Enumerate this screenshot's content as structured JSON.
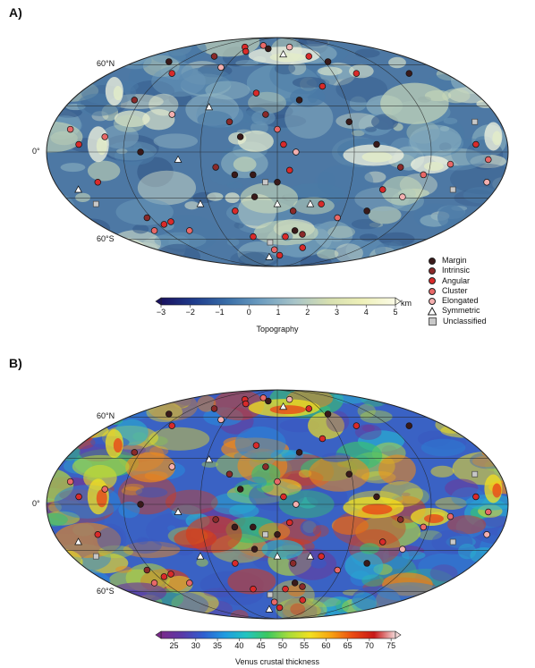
{
  "panels": [
    {
      "label": "A)",
      "lat_labels": {
        "north": "60°N",
        "equator": "0°",
        "south": "60°S"
      },
      "colorbar": {
        "title": "Topography",
        "unit": "km",
        "ticks": [
          "−3",
          "−2",
          "−1",
          "0",
          "1",
          "2",
          "3",
          "4",
          "5"
        ],
        "range": [
          -3,
          5
        ],
        "palette": [
          "#1a1260",
          "#1f3c8c",
          "#3a6fa8",
          "#6e9ec0",
          "#a8c4c8",
          "#d6dfb0",
          "#eef0b8",
          "#fbfbe6"
        ]
      }
    },
    {
      "label": "B)",
      "lat_labels": {
        "north": "60°N",
        "equator": "0°",
        "south": "60°S"
      },
      "colorbar": {
        "title": "Venus crustal thickness",
        "unit": "",
        "ticks": [
          "25",
          "30",
          "35",
          "40",
          "45",
          "50",
          "55",
          "60",
          "65",
          "70",
          "75"
        ],
        "range": [
          22,
          76
        ],
        "palette": [
          "#7a2a8a",
          "#5a3aa8",
          "#2f5fd0",
          "#1f9be0",
          "#22c4c0",
          "#3cc860",
          "#a8dc3a",
          "#f2e020",
          "#f6a012",
          "#ea4a12",
          "#c81818",
          "#f2d8d8"
        ]
      }
    }
  ],
  "legend": [
    {
      "label": "Margin",
      "symbol": "circle",
      "color": "#3a1a1a"
    },
    {
      "label": "Intrinsic",
      "symbol": "circle",
      "color": "#8a2a2a"
    },
    {
      "label": "Angular",
      "symbol": "circle",
      "color": "#d92a2a"
    },
    {
      "label": "Cluster",
      "symbol": "circle",
      "color": "#e86868"
    },
    {
      "label": "Elongated",
      "symbol": "circle",
      "color": "#f4b0b0"
    },
    {
      "label": "Symmetric",
      "symbol": "triangle",
      "color": "#ffffff"
    },
    {
      "label": "Unclassified",
      "symbol": "square",
      "color": "#c8c8c8"
    }
  ],
  "points": [
    {
      "lon": -150,
      "lat": 65,
      "t": "Margin"
    },
    {
      "lon": -120,
      "lat": 55,
      "t": "Angular"
    },
    {
      "lon": -100,
      "lat": 70,
      "t": "Intrinsic"
    },
    {
      "lon": -80,
      "lat": 80,
      "t": "Angular"
    },
    {
      "lon": -60,
      "lat": 75,
      "t": "Angular"
    },
    {
      "lon": -40,
      "lat": 82,
      "t": "Cluster"
    },
    {
      "lon": -20,
      "lat": 78,
      "t": "Margin"
    },
    {
      "lon": 10,
      "lat": 72,
      "t": "Symmetric"
    },
    {
      "lon": 30,
      "lat": 80,
      "t": "Elongated"
    },
    {
      "lon": 50,
      "lat": 70,
      "t": "Angular"
    },
    {
      "lon": 70,
      "lat": 65,
      "t": "Margin"
    },
    {
      "lon": 90,
      "lat": 55,
      "t": "Angular"
    },
    {
      "lon": -170,
      "lat": 15,
      "t": "Cluster"
    },
    {
      "lon": -160,
      "lat": 5,
      "t": "Angular"
    },
    {
      "lon": -140,
      "lat": 10,
      "t": "Cluster"
    },
    {
      "lon": -110,
      "lat": 0,
      "t": "Margin"
    },
    {
      "lon": -90,
      "lat": 25,
      "t": "Elongated"
    },
    {
      "lon": -60,
      "lat": 30,
      "t": "Symmetric"
    },
    {
      "lon": -40,
      "lat": 20,
      "t": "Intrinsic"
    },
    {
      "lon": -30,
      "lat": 10,
      "t": "Margin"
    },
    {
      "lon": -20,
      "lat": 40,
      "t": "Angular"
    },
    {
      "lon": -10,
      "lat": 25,
      "t": "Intrinsic"
    },
    {
      "lon": 0,
      "lat": 15,
      "t": "Cluster"
    },
    {
      "lon": 5,
      "lat": 5,
      "t": "Angular"
    },
    {
      "lon": 15,
      "lat": 0,
      "t": "Elongated"
    },
    {
      "lon": -50,
      "lat": -10,
      "t": "Intrinsic"
    },
    {
      "lon": -35,
      "lat": -15,
      "t": "Margin"
    },
    {
      "lon": -20,
      "lat": -15,
      "t": "Margin"
    },
    {
      "lon": -10,
      "lat": -20,
      "t": "Unclassified"
    },
    {
      "lon": 0,
      "lat": -20,
      "t": "Margin"
    },
    {
      "lon": 10,
      "lat": -12,
      "t": "Angular"
    },
    {
      "lon": -70,
      "lat": -35,
      "t": "Symmetric"
    },
    {
      "lon": -40,
      "lat": -40,
      "t": "Angular"
    },
    {
      "lon": -20,
      "lat": -30,
      "t": "Margin"
    },
    {
      "lon": 0,
      "lat": -35,
      "t": "Symmetric"
    },
    {
      "lon": 15,
      "lat": -40,
      "t": "Intrinsic"
    },
    {
      "lon": 30,
      "lat": -35,
      "t": "Symmetric"
    },
    {
      "lon": 20,
      "lat": -55,
      "t": "Margin"
    },
    {
      "lon": 10,
      "lat": -60,
      "t": "Angular"
    },
    {
      "lon": 30,
      "lat": -58,
      "t": "Intrinsic"
    },
    {
      "lon": -30,
      "lat": -60,
      "t": "Angular"
    },
    {
      "lon": -10,
      "lat": -65,
      "t": "Unclassified"
    },
    {
      "lon": -5,
      "lat": -72,
      "t": "Cluster"
    },
    {
      "lon": 5,
      "lat": -78,
      "t": "Angular"
    },
    {
      "lon": -20,
      "lat": -80,
      "t": "Symmetric"
    },
    {
      "lon": 40,
      "lat": -70,
      "t": "Angular"
    },
    {
      "lon": -120,
      "lat": -50,
      "t": "Angular"
    },
    {
      "lon": -130,
      "lat": -45,
      "t": "Intrinsic"
    },
    {
      "lon": -140,
      "lat": -55,
      "t": "Cluster"
    },
    {
      "lon": -110,
      "lat": -48,
      "t": "Angular"
    },
    {
      "lon": -100,
      "lat": -55,
      "t": "Cluster"
    },
    {
      "lon": -150,
      "lat": -20,
      "t": "Angular"
    },
    {
      "lon": -170,
      "lat": -25,
      "t": "Symmetric"
    },
    {
      "lon": -165,
      "lat": -35,
      "t": "Unclassified"
    },
    {
      "lon": 60,
      "lat": 20,
      "t": "Margin"
    },
    {
      "lon": 80,
      "lat": 5,
      "t": "Margin"
    },
    {
      "lon": 100,
      "lat": -10,
      "t": "Intrinsic"
    },
    {
      "lon": 120,
      "lat": -15,
      "t": "Cluster"
    },
    {
      "lon": 140,
      "lat": -8,
      "t": "Cluster"
    },
    {
      "lon": 160,
      "lat": 5,
      "t": "Angular"
    },
    {
      "lon": 170,
      "lat": -5,
      "t": "Cluster"
    },
    {
      "lon": 165,
      "lat": 20,
      "t": "Unclassified"
    },
    {
      "lon": 175,
      "lat": -20,
      "t": "Elongated"
    },
    {
      "lon": 150,
      "lat": -25,
      "t": "Unclassified"
    },
    {
      "lon": 90,
      "lat": -25,
      "t": "Angular"
    },
    {
      "lon": 85,
      "lat": -40,
      "t": "Margin"
    },
    {
      "lon": 60,
      "lat": -45,
      "t": "Cluster"
    },
    {
      "lon": 40,
      "lat": -35,
      "t": "Angular"
    },
    {
      "lon": 110,
      "lat": -30,
      "t": "Elongated"
    },
    {
      "lon": 150,
      "lat": 55,
      "t": "Margin"
    },
    {
      "lon": 45,
      "lat": 45,
      "t": "Angular"
    },
    {
      "lon": 20,
      "lat": 35,
      "t": "Margin"
    },
    {
      "lon": -70,
      "lat": 60,
      "t": "Elongated"
    },
    {
      "lon": -130,
      "lat": 35,
      "t": "Intrinsic"
    },
    {
      "lon": -80,
      "lat": -5,
      "t": "Symmetric"
    }
  ]
}
